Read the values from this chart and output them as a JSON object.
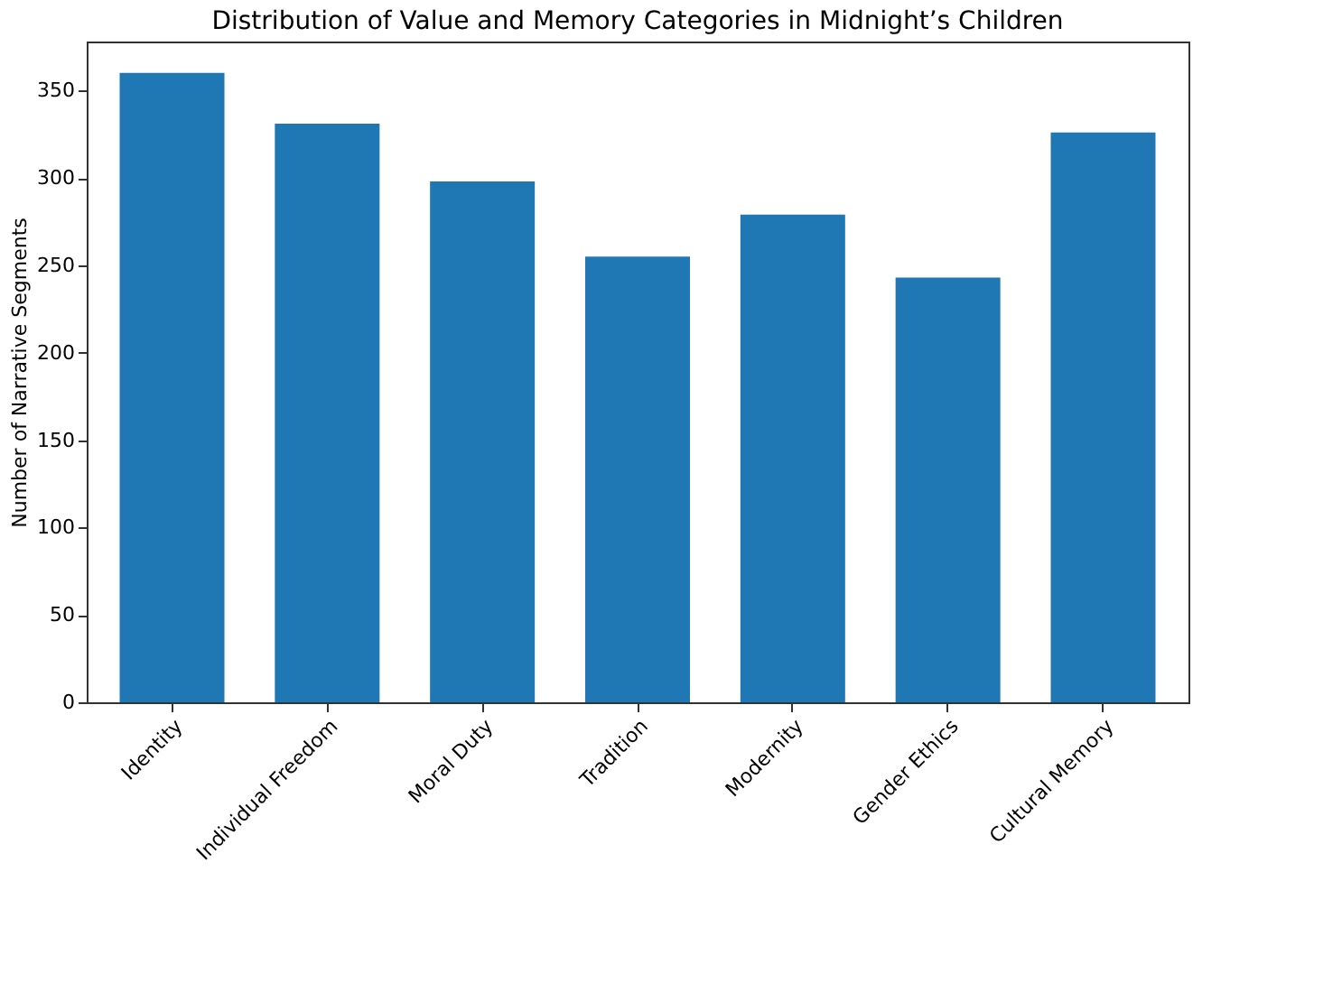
{
  "chart_data": {
    "type": "bar",
    "title": "Distribution of Value and Memory Categories in Midnight’s Children",
    "ylabel": "Number of Narrative Segments",
    "categories": [
      "Identity",
      "Individual Freedom",
      "Moral Duty",
      "Tradition",
      "Modernity",
      "Gender Ethics",
      "Cultural Memory"
    ],
    "values": [
      360,
      331,
      298,
      255,
      279,
      243,
      326
    ],
    "color": "#1f77b4",
    "ylim": [
      0,
      378
    ],
    "yticks": [
      0,
      50,
      100,
      150,
      200,
      250,
      300,
      350
    ],
    "grid": false
  }
}
